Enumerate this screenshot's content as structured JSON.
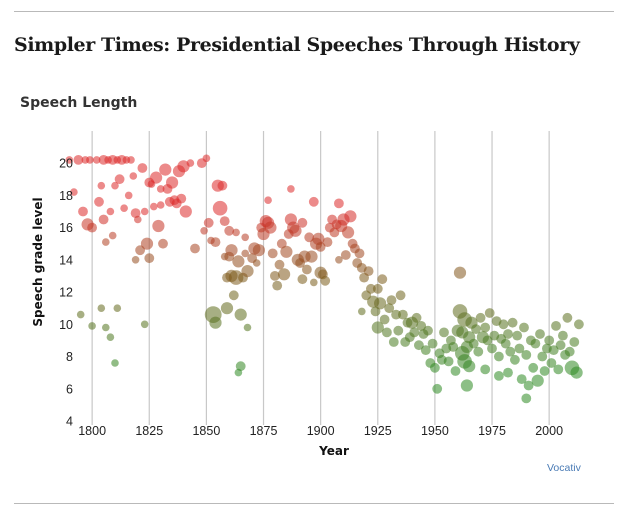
{
  "headline": "Simpler Times: Presidential Speeches Through History",
  "source_credit": "Vocativ",
  "chart_data": {
    "type": "scatter",
    "title": "Speech Length",
    "xlabel": "Year",
    "ylabel": "Speech grade level",
    "xlim": [
      1789,
      2017
    ],
    "ylim": [
      4,
      21
    ],
    "xticks": [
      1800,
      1825,
      1850,
      1875,
      1900,
      1925,
      1950,
      1975,
      2000
    ],
    "yticks": [
      4,
      6,
      8,
      10,
      12,
      14,
      16,
      18,
      20
    ],
    "vertical_gridlines": true,
    "encoding": {
      "size": "speech length",
      "color": "grade level (red = high, green = low)",
      "color_high": "#dc2a2a",
      "color_mid": "#7f5a1c",
      "color_low": "#2e8a22"
    },
    "notes": "Point values estimated from the image; exact values are not shown.",
    "points": [
      [
        1790,
        20.2,
        2
      ],
      [
        1792,
        18.2,
        2
      ],
      [
        1794,
        20.2,
        3
      ],
      [
        1795,
        10.6,
        2
      ],
      [
        1796,
        17.0,
        3
      ],
      [
        1797,
        20.2,
        2
      ],
      [
        1798,
        16.2,
        4
      ],
      [
        1799,
        20.2,
        2
      ],
      [
        1800,
        16.0,
        3
      ],
      [
        1800,
        9.9,
        2
      ],
      [
        1802,
        20.2,
        2
      ],
      [
        1803,
        17.6,
        3
      ],
      [
        1804,
        18.6,
        2
      ],
      [
        1804,
        11.0,
        2
      ],
      [
        1805,
        20.2,
        3
      ],
      [
        1805,
        16.5,
        3
      ],
      [
        1806,
        15.1,
        2
      ],
      [
        1806,
        9.8,
        2
      ],
      [
        1807,
        20.2,
        2
      ],
      [
        1808,
        17.0,
        2
      ],
      [
        1808,
        9.2,
        2
      ],
      [
        1809,
        20.2,
        3
      ],
      [
        1809,
        15.5,
        2
      ],
      [
        1810,
        18.6,
        2
      ],
      [
        1810,
        7.6,
        2
      ],
      [
        1811,
        20.2,
        2
      ],
      [
        1811,
        11.0,
        2
      ],
      [
        1812,
        19.0,
        3
      ],
      [
        1813,
        20.2,
        3
      ],
      [
        1814,
        17.2,
        2
      ],
      [
        1815,
        20.2,
        2
      ],
      [
        1816,
        18.0,
        2
      ],
      [
        1817,
        20.2,
        2
      ],
      [
        1818,
        19.2,
        2
      ],
      [
        1819,
        16.9,
        3
      ],
      [
        1819,
        14.0,
        2
      ],
      [
        1820,
        16.5,
        2
      ],
      [
        1821,
        14.6,
        3
      ],
      [
        1822,
        19.7,
        3
      ],
      [
        1823,
        17.0,
        2
      ],
      [
        1823,
        10.0,
        2
      ],
      [
        1824,
        15.0,
        4
      ],
      [
        1825,
        14.1,
        3
      ],
      [
        1825,
        18.8,
        3
      ],
      [
        1826,
        18.7,
        2
      ],
      [
        1827,
        17.3,
        2
      ],
      [
        1828,
        19.1,
        4
      ],
      [
        1829,
        16.1,
        4
      ],
      [
        1830,
        17.4,
        2
      ],
      [
        1830,
        18.4,
        2
      ],
      [
        1831,
        15.0,
        3
      ],
      [
        1832,
        19.6,
        4
      ],
      [
        1833,
        18.4,
        3
      ],
      [
        1834,
        17.6,
        3
      ],
      [
        1835,
        18.8,
        4
      ],
      [
        1836,
        17.7,
        3
      ],
      [
        1837,
        17.5,
        3
      ],
      [
        1838,
        19.5,
        4
      ],
      [
        1839,
        17.8,
        3
      ],
      [
        1840,
        19.8,
        4
      ],
      [
        1841,
        17.0,
        4
      ],
      [
        1843,
        20.0,
        2
      ],
      [
        1845,
        14.7,
        3
      ],
      [
        1848,
        20.0,
        3
      ],
      [
        1849,
        15.8,
        2
      ],
      [
        1850,
        20.3,
        2
      ],
      [
        1851,
        16.3,
        3
      ],
      [
        1852,
        15.2,
        2
      ],
      [
        1853,
        10.6,
        6
      ],
      [
        1854,
        15.1,
        3
      ],
      [
        1854,
        10.1,
        4
      ],
      [
        1855,
        18.6,
        4
      ],
      [
        1856,
        17.2,
        5
      ],
      [
        1857,
        18.6,
        3
      ],
      [
        1858,
        16.4,
        3
      ],
      [
        1858,
        14.2,
        2
      ],
      [
        1859,
        12.9,
        3
      ],
      [
        1859,
        11.0,
        4
      ],
      [
        1860,
        14.2,
        3
      ],
      [
        1860,
        15.8,
        3
      ],
      [
        1861,
        14.6,
        4
      ],
      [
        1861,
        13.0,
        4
      ],
      [
        1862,
        11.8,
        3
      ],
      [
        1863,
        12.9,
        5
      ],
      [
        1863,
        15.7,
        2
      ],
      [
        1864,
        13.9,
        4
      ],
      [
        1864,
        7.0,
        2
      ],
      [
        1865,
        7.4,
        3
      ],
      [
        1865,
        10.6,
        4
      ],
      [
        1866,
        12.9,
        3
      ],
      [
        1867,
        14.4,
        2
      ],
      [
        1867,
        15.4,
        2
      ],
      [
        1868,
        13.3,
        4
      ],
      [
        1868,
        9.8,
        2
      ],
      [
        1870,
        14.1,
        3
      ],
      [
        1871,
        14.7,
        4
      ],
      [
        1872,
        13.8,
        2
      ],
      [
        1873,
        14.6,
        4
      ],
      [
        1874,
        16.0,
        3
      ],
      [
        1875,
        15.6,
        4
      ],
      [
        1876,
        16.4,
        4
      ],
      [
        1877,
        16.3,
        4
      ],
      [
        1877,
        17.7,
        2
      ],
      [
        1878,
        16.0,
        4
      ],
      [
        1879,
        14.4,
        3
      ],
      [
        1880,
        13.0,
        3
      ],
      [
        1881,
        12.4,
        3
      ],
      [
        1882,
        13.7,
        3
      ],
      [
        1883,
        15.0,
        3
      ],
      [
        1884,
        13.1,
        4
      ],
      [
        1885,
        14.5,
        4
      ],
      [
        1886,
        15.6,
        3
      ],
      [
        1887,
        16.5,
        4
      ],
      [
        1887,
        18.4,
        2
      ],
      [
        1888,
        16.0,
        4
      ],
      [
        1889,
        15.8,
        4
      ],
      [
        1890,
        14.0,
        4
      ],
      [
        1891,
        13.8,
        3
      ],
      [
        1892,
        16.3,
        3
      ],
      [
        1892,
        12.8,
        3
      ],
      [
        1893,
        14.2,
        4
      ],
      [
        1894,
        13.4,
        3
      ],
      [
        1895,
        15.4,
        3
      ],
      [
        1896,
        14.2,
        4
      ],
      [
        1897,
        17.6,
        3
      ],
      [
        1897,
        12.6,
        2
      ],
      [
        1898,
        15.0,
        4
      ],
      [
        1899,
        15.3,
        4
      ],
      [
        1900,
        14.8,
        3
      ],
      [
        1900,
        13.2,
        4
      ],
      [
        1901,
        13.1,
        3
      ],
      [
        1902,
        12.7,
        3
      ],
      [
        1903,
        15.1,
        3
      ],
      [
        1904,
        16.0,
        3
      ],
      [
        1905,
        16.5,
        3
      ],
      [
        1906,
        15.7,
        3
      ],
      [
        1907,
        16.2,
        3
      ],
      [
        1908,
        17.5,
        3
      ],
      [
        1908,
        14.0,
        2
      ],
      [
        1909,
        16.1,
        4
      ],
      [
        1910,
        16.5,
        4
      ],
      [
        1911,
        14.3,
        3
      ],
      [
        1912,
        15.7,
        4
      ],
      [
        1913,
        16.7,
        4
      ],
      [
        1914,
        15.0,
        3
      ],
      [
        1915,
        14.7,
        3
      ],
      [
        1916,
        13.8,
        3
      ],
      [
        1917,
        14.4,
        3
      ],
      [
        1918,
        13.5,
        3
      ],
      [
        1918,
        10.8,
        2
      ],
      [
        1919,
        12.9,
        3
      ],
      [
        1920,
        11.8,
        3
      ],
      [
        1921,
        13.3,
        3
      ],
      [
        1922,
        12.2,
        3
      ],
      [
        1923,
        11.4,
        4
      ],
      [
        1924,
        10.8,
        3
      ],
      [
        1925,
        9.8,
        4
      ],
      [
        1925,
        12.2,
        3
      ],
      [
        1926,
        11.3,
        4
      ],
      [
        1927,
        12.8,
        3
      ],
      [
        1928,
        10.3,
        3
      ],
      [
        1929,
        9.5,
        3
      ],
      [
        1930,
        11.0,
        3
      ],
      [
        1931,
        11.5,
        3
      ],
      [
        1932,
        8.9,
        3
      ],
      [
        1933,
        10.6,
        3
      ],
      [
        1934,
        9.6,
        3
      ],
      [
        1935,
        11.8,
        3
      ],
      [
        1936,
        10.6,
        3
      ],
      [
        1937,
        8.9,
        3
      ],
      [
        1938,
        10.1,
        3
      ],
      [
        1939,
        9.2,
        3
      ],
      [
        1940,
        10.1,
        4
      ],
      [
        1941,
        9.5,
        3
      ],
      [
        1942,
        10.4,
        3
      ],
      [
        1943,
        8.7,
        3
      ],
      [
        1944,
        9.9,
        3
      ],
      [
        1945,
        9.4,
        3
      ],
      [
        1946,
        8.4,
        3
      ],
      [
        1947,
        9.6,
        3
      ],
      [
        1948,
        7.6,
        3
      ],
      [
        1949,
        8.8,
        3
      ],
      [
        1950,
        7.3,
        3
      ],
      [
        1951,
        6.0,
        3
      ],
      [
        1952,
        8.2,
        3
      ],
      [
        1953,
        7.8,
        3
      ],
      [
        1954,
        9.5,
        3
      ],
      [
        1955,
        8.5,
        3
      ],
      [
        1956,
        7.7,
        3
      ],
      [
        1957,
        9.0,
        3
      ],
      [
        1958,
        8.6,
        3
      ],
      [
        1959,
        7.1,
        3
      ],
      [
        1960,
        9.6,
        4
      ],
      [
        1961,
        10.8,
        5
      ],
      [
        1961,
        13.2,
        4
      ],
      [
        1962,
        9.5,
        4
      ],
      [
        1962,
        8.2,
        5
      ],
      [
        1963,
        10.3,
        5
      ],
      [
        1963,
        7.7,
        5
      ],
      [
        1964,
        8.6,
        4
      ],
      [
        1964,
        6.2,
        4
      ],
      [
        1965,
        9.2,
        4
      ],
      [
        1965,
        7.4,
        4
      ],
      [
        1966,
        10.1,
        4
      ],
      [
        1967,
        8.8,
        3
      ],
      [
        1968,
        9.7,
        3
      ],
      [
        1969,
        8.3,
        3
      ],
      [
        1970,
        10.4,
        3
      ],
      [
        1971,
        9.2,
        4
      ],
      [
        1972,
        9.8,
        3
      ],
      [
        1972,
        7.2,
        3
      ],
      [
        1973,
        9.0,
        3
      ],
      [
        1974,
        10.7,
        3
      ],
      [
        1975,
        8.5,
        3
      ],
      [
        1976,
        9.3,
        3
      ],
      [
        1977,
        10.2,
        3
      ],
      [
        1978,
        8.0,
        3
      ],
      [
        1978,
        6.8,
        3
      ],
      [
        1979,
        9.1,
        3
      ],
      [
        1980,
        10.0,
        3
      ],
      [
        1981,
        8.8,
        3
      ],
      [
        1982,
        9.4,
        3
      ],
      [
        1982,
        7.0,
        3
      ],
      [
        1983,
        8.3,
        3
      ],
      [
        1984,
        10.1,
        3
      ],
      [
        1985,
        7.8,
        3
      ],
      [
        1986,
        9.3,
        3
      ],
      [
        1987,
        8.5,
        3
      ],
      [
        1988,
        6.6,
        3
      ],
      [
        1989,
        9.8,
        3
      ],
      [
        1990,
        8.1,
        3
      ],
      [
        1990,
        5.4,
        3
      ],
      [
        1991,
        6.2,
        3
      ],
      [
        1992,
        9.0,
        3
      ],
      [
        1993,
        7.3,
        3
      ],
      [
        1994,
        8.8,
        3
      ],
      [
        1995,
        6.5,
        4
      ],
      [
        1996,
        9.4,
        3
      ],
      [
        1997,
        8.0,
        3
      ],
      [
        1998,
        7.1,
        3
      ],
      [
        1999,
        8.5,
        3
      ],
      [
        2000,
        9.0,
        3
      ],
      [
        2001,
        7.6,
        3
      ],
      [
        2002,
        8.4,
        3
      ],
      [
        2003,
        9.9,
        3
      ],
      [
        2004,
        7.2,
        3
      ],
      [
        2005,
        8.7,
        3
      ],
      [
        2006,
        9.3,
        3
      ],
      [
        2007,
        8.1,
        3
      ],
      [
        2008,
        10.4,
        3
      ],
      [
        2009,
        8.3,
        3
      ],
      [
        2010,
        7.3,
        5
      ],
      [
        2011,
        8.9,
        3
      ],
      [
        2012,
        7.0,
        4
      ],
      [
        2013,
        10.0,
        3
      ]
    ]
  }
}
